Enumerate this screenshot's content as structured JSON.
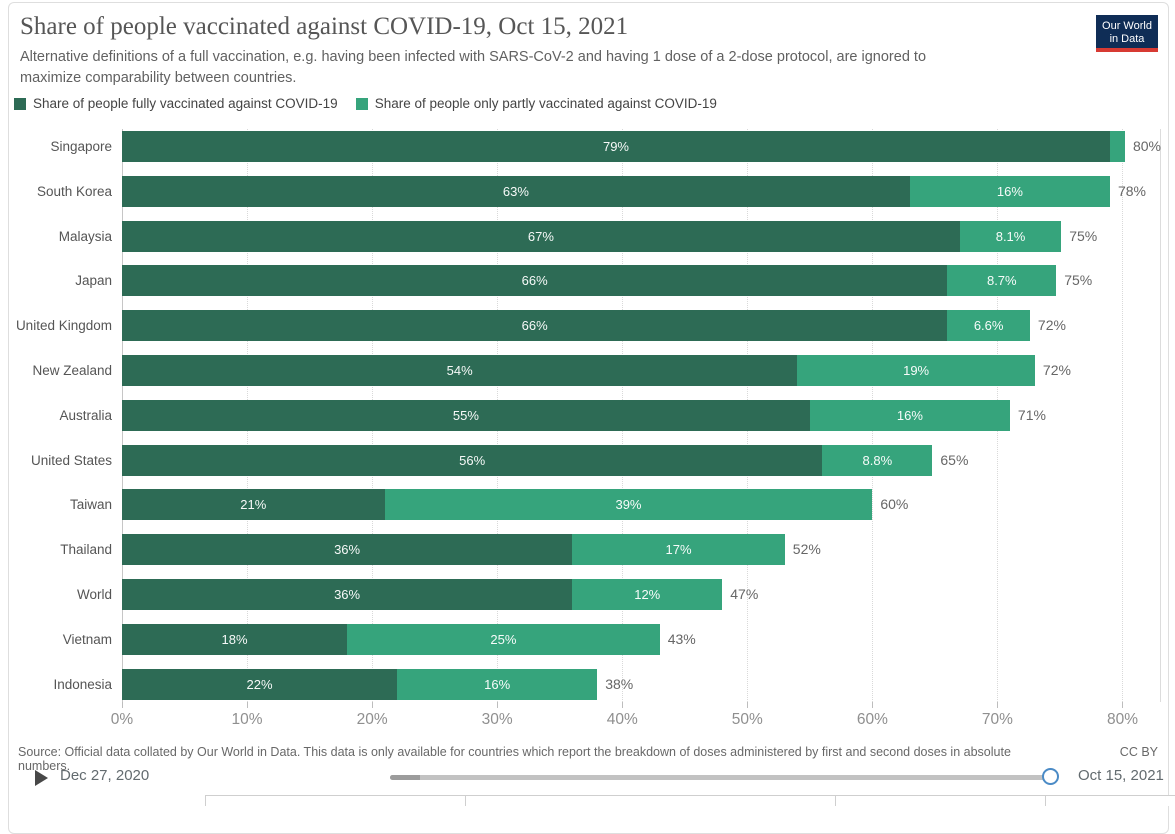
{
  "header": {
    "title": "Share of people vaccinated against COVID-19, Oct 15, 2021",
    "subtitle": "Alternative definitions of a full vaccination, e.g. having been infected with SARS-CoV-2 and having 1 dose of a 2-dose protocol, are ignored to maximize comparability between countries.",
    "logo": {
      "line1": "Our World",
      "line2": "in Data",
      "bg_color": "#0f2d56",
      "accent_color": "#d73a33"
    }
  },
  "legend": {
    "items": [
      {
        "label": "Share of people fully vaccinated against COVID-19",
        "color": "#2d6b55"
      },
      {
        "label": "Share of people only partly vaccinated against COVID-19",
        "color": "#36a47c"
      }
    ]
  },
  "chart_data": {
    "type": "bar",
    "orientation": "horizontal",
    "stacked": true,
    "title": "Share of people vaccinated against COVID-19, Oct 15, 2021",
    "categories": [
      "Singapore",
      "South Korea",
      "Malaysia",
      "Japan",
      "United Kingdom",
      "New Zealand",
      "Australia",
      "United States",
      "Taiwan",
      "Thailand",
      "World",
      "Vietnam",
      "Indonesia"
    ],
    "series": [
      {
        "name": "Share of people fully vaccinated against COVID-19",
        "color": "#2d6b55",
        "values": [
          79,
          63,
          67,
          66,
          66,
          54,
          55,
          56,
          21,
          36,
          36,
          18,
          22
        ],
        "labels": [
          "79%",
          "63%",
          "67%",
          "66%",
          "66%",
          "54%",
          "55%",
          "56%",
          "21%",
          "36%",
          "36%",
          "18%",
          "22%"
        ]
      },
      {
        "name": "Share of people only partly vaccinated against COVID-19",
        "color": "#36a47c",
        "values": [
          1.2,
          16,
          8.1,
          8.7,
          6.6,
          19,
          16,
          8.8,
          39,
          17,
          12,
          25,
          16
        ],
        "labels": [
          "",
          "16%",
          "8.1%",
          "8.7%",
          "6.6%",
          "19%",
          "16%",
          "8.8%",
          "39%",
          "17%",
          "12%",
          "25%",
          "16%"
        ]
      }
    ],
    "totals": [
      "80%",
      "78%",
      "75%",
      "75%",
      "72%",
      "72%",
      "71%",
      "65%",
      "60%",
      "52%",
      "47%",
      "43%",
      "38%"
    ],
    "x_ticks": [
      "0%",
      "10%",
      "20%",
      "30%",
      "40%",
      "50%",
      "60%",
      "70%",
      "80%"
    ],
    "x_tick_values": [
      0,
      10,
      20,
      30,
      40,
      50,
      60,
      70,
      80
    ],
    "xlim": [
      0,
      83
    ],
    "grid": "vertical-dotted",
    "legend_position": "top-left"
  },
  "footer": {
    "source": "Source: Official data collated by Our World in Data. This data is only available for countries which report the breakdown of doses administered by first and second doses in absolute numbers.",
    "license": "CC BY"
  },
  "timeline": {
    "start_label": "Dec 27, 2020",
    "end_label": "Oct 15, 2021"
  }
}
